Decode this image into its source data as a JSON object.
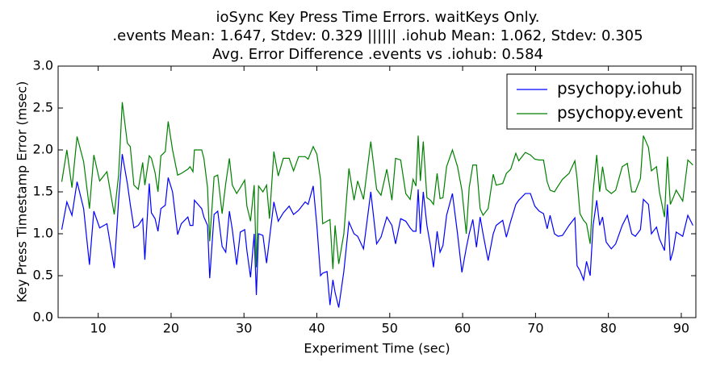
{
  "chart_data": {
    "type": "line",
    "title": [
      "ioSync Key Press Time Errors. waitKeys Only.",
      ".events Mean: 1.647, Stdev: 0.329 |||||| .iohub Mean: 1.062, Stdev: 0.305",
      "Avg. Error Difference .events vs .iohub: 0.584"
    ],
    "xlabel": "Experiment Time (sec)",
    "ylabel": "Key Press Timestamp Error (msec)",
    "xlim": [
      4.5,
      92
    ],
    "ylim": [
      0,
      3
    ],
    "xticks": [
      10,
      20,
      30,
      40,
      50,
      60,
      70,
      80,
      90
    ],
    "yticks": [
      {
        "value": 0,
        "label": "0.0"
      },
      {
        "value": 0.5,
        "label": "0.5"
      },
      {
        "value": 1,
        "label": "1.0"
      },
      {
        "value": 1.5,
        "label": "1.5"
      },
      {
        "value": 2,
        "label": "2.0"
      },
      {
        "value": 2.5,
        "label": "2.5"
      },
      {
        "value": 3,
        "label": "3.0"
      }
    ],
    "grid": false,
    "legend": "upper right",
    "x": [
      5.0,
      5.7,
      6.4,
      7.1,
      8.0,
      8.8,
      9.4,
      10.2,
      11.2,
      12.2,
      12.8,
      13.3,
      14.0,
      14.4,
      14.9,
      15.5,
      16.1,
      16.4,
      17.0,
      17.3,
      17.8,
      18.2,
      18.6,
      19.2,
      19.6,
      20.2,
      20.9,
      21.4,
      22.3,
      22.6,
      23.0,
      23.2,
      24.2,
      24.5,
      25.0,
      25.3,
      25.9,
      26.4,
      27.0,
      27.5,
      28.0,
      28.4,
      29.0,
      29.5,
      30.1,
      30.4,
      30.9,
      31.4,
      31.7,
      32.0,
      32.6,
      33.1,
      33.5,
      34.1,
      34.7,
      35.4,
      36.2,
      36.8,
      37.5,
      38.4,
      38.8,
      39.5,
      40.0,
      40.5,
      40.8,
      41.4,
      41.8,
      42.2,
      42.5,
      43.0,
      43.7,
      44.4,
      45.1,
      45.6,
      46.4,
      47.4,
      48.2,
      48.8,
      49.6,
      50.3,
      50.8,
      51.5,
      52.2,
      52.8,
      53.2,
      53.6,
      53.9,
      54.2,
      54.6,
      55.1,
      55.6,
      56.0,
      56.5,
      56.9,
      57.3,
      57.8,
      58.6,
      59.3,
      59.9,
      60.5,
      60.9,
      61.4,
      61.9,
      62.4,
      62.8,
      63.5,
      64.2,
      64.6,
      65.5,
      66.0,
      66.6,
      67.3,
      67.7,
      68.6,
      69.3,
      69.9,
      70.5,
      71.1,
      71.6,
      72.0,
      72.6,
      73.1,
      73.7,
      74.6,
      75.4,
      75.7,
      76.1,
      76.6,
      77.0,
      77.5,
      77.9,
      78.4,
      78.8,
      79.2,
      79.7,
      80.4,
      81.0,
      81.9,
      82.6,
      83.2,
      83.7,
      84.4,
      84.8,
      85.5,
      85.9,
      86.6,
      87.0,
      87.7,
      88.1,
      88.5,
      88.9,
      89.3,
      90.2,
      90.9,
      91.6
    ],
    "series": [
      {
        "name": "psychopy.iohub",
        "color": "#0000ff",
        "values": [
          1.05,
          1.38,
          1.22,
          1.62,
          1.3,
          0.63,
          1.27,
          1.07,
          1.12,
          0.59,
          1.4,
          1.95,
          1.6,
          1.35,
          1.07,
          1.1,
          1.18,
          0.69,
          1.6,
          1.25,
          1.18,
          1.03,
          1.3,
          1.34,
          1.67,
          1.5,
          0.99,
          1.12,
          1.2,
          1.1,
          1.1,
          1.4,
          1.3,
          1.2,
          1.1,
          0.47,
          1.23,
          1.27,
          0.85,
          0.78,
          1.27,
          1.05,
          0.63,
          1.02,
          1.05,
          0.8,
          0.48,
          1.0,
          0.27,
          1.0,
          0.98,
          0.65,
          0.94,
          1.38,
          1.15,
          1.25,
          1.33,
          1.23,
          1.28,
          1.38,
          1.35,
          1.57,
          1.1,
          0.5,
          0.53,
          0.55,
          0.15,
          0.45,
          0.3,
          0.12,
          0.55,
          1.14,
          1.0,
          0.97,
          0.82,
          1.5,
          0.88,
          0.96,
          1.2,
          1.1,
          0.88,
          1.18,
          1.15,
          1.07,
          1.03,
          1.03,
          1.53,
          1.0,
          1.5,
          1.1,
          0.85,
          0.6,
          1.03,
          0.78,
          0.86,
          1.22,
          1.48,
          1.0,
          0.54,
          0.83,
          1.0,
          1.17,
          0.84,
          1.2,
          1.0,
          0.68,
          1.0,
          1.1,
          1.16,
          0.96,
          1.15,
          1.35,
          1.4,
          1.48,
          1.48,
          1.33,
          1.27,
          1.24,
          1.06,
          1.22,
          1.0,
          0.97,
          0.98,
          1.1,
          1.19,
          0.62,
          0.56,
          0.45,
          0.67,
          0.5,
          1.1,
          1.4,
          1.1,
          1.2,
          0.9,
          0.82,
          0.88,
          1.1,
          1.22,
          1.0,
          0.97,
          1.05,
          1.41,
          1.35,
          1.0,
          1.08,
          0.94,
          0.8,
          1.35,
          0.68,
          0.8,
          1.02,
          0.97,
          1.22,
          1.1
        ]
      },
      {
        "name": "psychopy.event",
        "color": "#008000",
        "values": [
          1.62,
          2.0,
          1.55,
          2.16,
          1.86,
          1.3,
          1.94,
          1.63,
          1.74,
          1.23,
          1.7,
          2.57,
          2.08,
          2.04,
          1.58,
          1.53,
          1.85,
          1.58,
          1.93,
          1.9,
          1.73,
          1.5,
          1.93,
          1.98,
          2.34,
          2.0,
          1.7,
          1.72,
          1.77,
          1.8,
          1.74,
          2.0,
          2.0,
          1.9,
          1.55,
          0.91,
          1.68,
          1.7,
          1.24,
          1.6,
          1.9,
          1.58,
          1.48,
          1.55,
          1.64,
          1.33,
          1.15,
          1.58,
          0.6,
          1.57,
          1.5,
          1.58,
          1.18,
          1.98,
          1.69,
          1.9,
          1.9,
          1.75,
          1.92,
          1.92,
          1.89,
          2.04,
          1.95,
          1.65,
          1.12,
          1.15,
          1.17,
          0.58,
          1.1,
          0.64,
          1.0,
          1.78,
          1.4,
          1.63,
          1.41,
          2.1,
          1.53,
          1.46,
          1.77,
          1.4,
          1.9,
          1.88,
          1.48,
          1.41,
          1.65,
          1.57,
          2.17,
          1.63,
          2.1,
          1.43,
          1.4,
          1.35,
          1.72,
          1.42,
          1.43,
          1.8,
          2.0,
          1.8,
          1.52,
          1.0,
          1.55,
          1.82,
          1.82,
          1.3,
          1.22,
          1.3,
          1.71,
          1.58,
          1.6,
          1.72,
          1.77,
          1.96,
          1.87,
          1.97,
          1.94,
          1.89,
          1.88,
          1.88,
          1.62,
          1.52,
          1.5,
          1.57,
          1.65,
          1.72,
          1.87,
          1.66,
          1.24,
          1.16,
          1.12,
          0.88,
          1.5,
          1.94,
          1.5,
          1.8,
          1.53,
          1.48,
          1.52,
          1.8,
          1.84,
          1.5,
          1.5,
          1.66,
          2.17,
          2.03,
          1.75,
          1.8,
          1.5,
          1.2,
          1.92,
          1.35,
          1.43,
          1.52,
          1.39,
          1.88,
          1.82
        ]
      }
    ]
  }
}
